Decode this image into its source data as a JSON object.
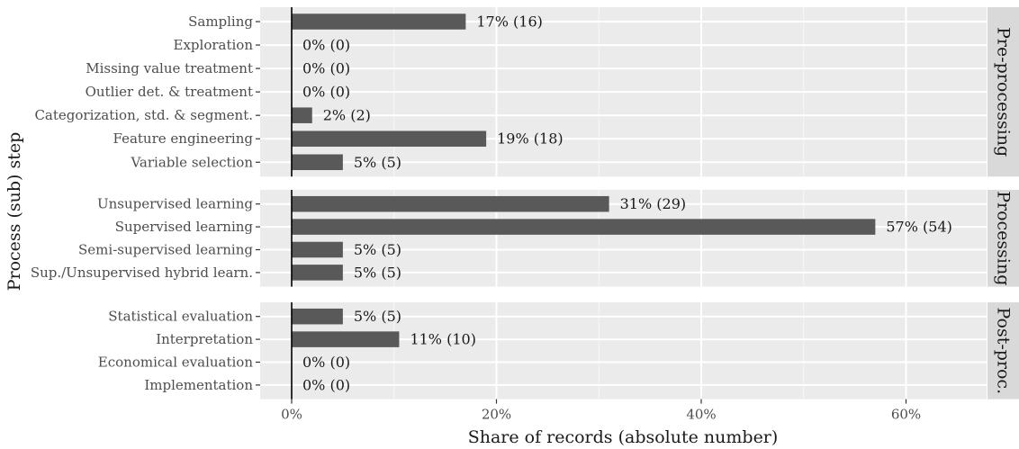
{
  "chart_data": {
    "type": "bar",
    "orientation": "horizontal",
    "xlabel": "Share of records (absolute number)",
    "ylabel": "Process (sub) step",
    "xlim": [
      -0.035,
      0.68
    ],
    "x_ticks": [
      0,
      0.2,
      0.4,
      0.6
    ],
    "x_tick_labels": [
      "0%",
      "20%",
      "40%",
      "60%"
    ],
    "grid": true,
    "bar_color": "#595959",
    "panel_color": "#ebebeb",
    "strip_color": "#d9d9d9",
    "facets": [
      {
        "name": "Pre-processing",
        "categories": [
          {
            "label": "Sampling",
            "value": 0.17,
            "count": 16,
            "value_label": "17% (16)"
          },
          {
            "label": "Exploration",
            "value": 0,
            "count": 0,
            "value_label": "0% (0)"
          },
          {
            "label": "Missing value treatment",
            "value": 0,
            "count": 0,
            "value_label": "0% (0)"
          },
          {
            "label": "Outlier det. & treatment",
            "value": 0,
            "count": 0,
            "value_label": "0% (0)"
          },
          {
            "label": "Categorization, std. & segment.",
            "value": 0.02,
            "count": 2,
            "value_label": "2% (2)"
          },
          {
            "label": "Feature engineering",
            "value": 0.19,
            "count": 18,
            "value_label": "19% (18)"
          },
          {
            "label": "Variable selection",
            "value": 0.05,
            "count": 5,
            "value_label": "5% (5)"
          }
        ]
      },
      {
        "name": "Processing",
        "categories": [
          {
            "label": "Unsupervised learning",
            "value": 0.31,
            "count": 29,
            "value_label": "31% (29)"
          },
          {
            "label": "Supervised learning",
            "value": 0.57,
            "count": 54,
            "value_label": "57% (54)"
          },
          {
            "label": "Semi-supervised learning",
            "value": 0.05,
            "count": 5,
            "value_label": "5% (5)"
          },
          {
            "label": "Sup./Unsupervised hybrid learn.",
            "value": 0.05,
            "count": 5,
            "value_label": "5% (5)"
          }
        ]
      },
      {
        "name": "Post-proc.",
        "categories": [
          {
            "label": "Statistical evaluation",
            "value": 0.05,
            "count": 5,
            "value_label": "5% (5)"
          },
          {
            "label": "Interpretation",
            "value": 0.105,
            "count": 10,
            "value_label": "11% (10)"
          },
          {
            "label": "Economical evaluation",
            "value": 0,
            "count": 0,
            "value_label": "0% (0)"
          },
          {
            "label": "Implementation",
            "value": 0,
            "count": 0,
            "value_label": "0% (0)"
          }
        ]
      }
    ]
  }
}
